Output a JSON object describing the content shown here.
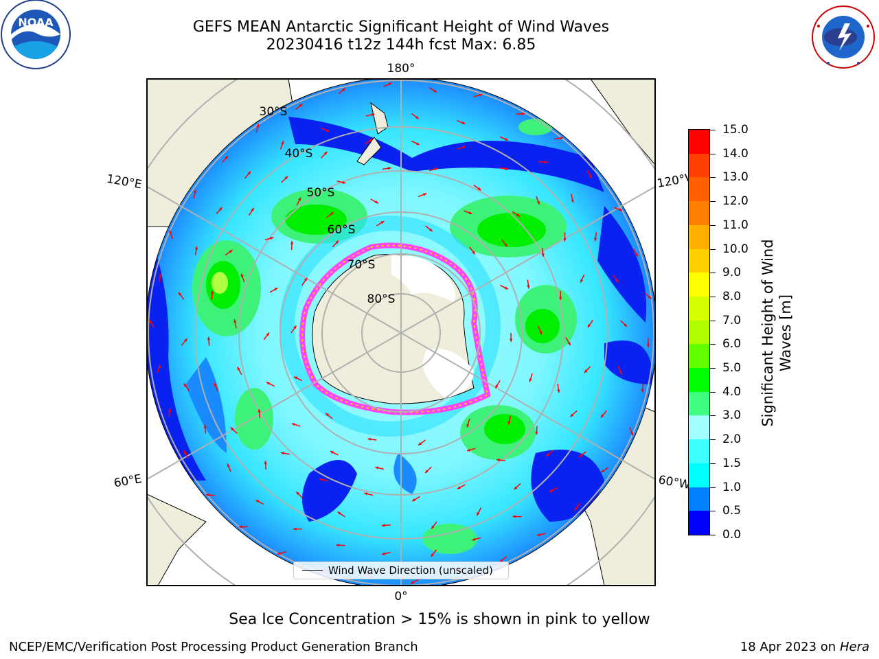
{
  "header": {
    "title_line1": "GEFS MEAN Antarctic Significant Height of Wind Waves",
    "title_line2": "20230416 t12z 144h fcst   Max: 6.85"
  },
  "logos": {
    "left": {
      "name": "NOAA",
      "text": "NOAA",
      "ring_text": "NATIONAL OCEANIC AND ATMOSPHERIC ADMINISTRATION · U.S. DEPARTMENT OF COMMERCE"
    },
    "right": {
      "name": "National Weather Service",
      "ring_text": "NATIONAL WEATHER SERVICE"
    }
  },
  "map": {
    "longitude_labels": {
      "top": "180°",
      "bottom": "0°",
      "upper_left": "120°E",
      "upper_right": "120°W",
      "lower_left": "60°E",
      "lower_right": "60°W"
    },
    "latitude_labels": [
      "30°S",
      "40°S",
      "50°S",
      "60°S",
      "70°S",
      "80°S"
    ],
    "colors": {
      "land": "#efeddb",
      "ice_edge": "#ff44ff",
      "arrows": "#ff0000",
      "gridlines": "#b0b0b0"
    }
  },
  "legend": {
    "line_label": "Wind Wave Direction (unscaled)"
  },
  "colorbar": {
    "title": "Significant Height of Wind Waves [m]",
    "ticks": [
      "0.0",
      "0.5",
      "1.0",
      "1.5",
      "2.0",
      "3.0",
      "4.0",
      "5.0",
      "6.0",
      "7.0",
      "8.0",
      "9.0",
      "10.0",
      "11.0",
      "12.0",
      "13.0",
      "14.0",
      "15.0"
    ],
    "colors": [
      "#0000ff",
      "#0080ff",
      "#00ffff",
      "#40ffff",
      "#a0ffff",
      "#40ff80",
      "#00ff00",
      "#60ff00",
      "#b0ff00",
      "#d8ff00",
      "#ffff00",
      "#ffd000",
      "#ffb000",
      "#ff8000",
      "#ff6000",
      "#ff4000",
      "#ff0000"
    ]
  },
  "caption": "Sea Ice Concentration > 15% is shown in pink to yellow",
  "footer": {
    "left": "NCEP/EMC/Verification Post Processing Product Generation Branch",
    "date": "18 Apr 2023 on ",
    "system": "Hera"
  }
}
